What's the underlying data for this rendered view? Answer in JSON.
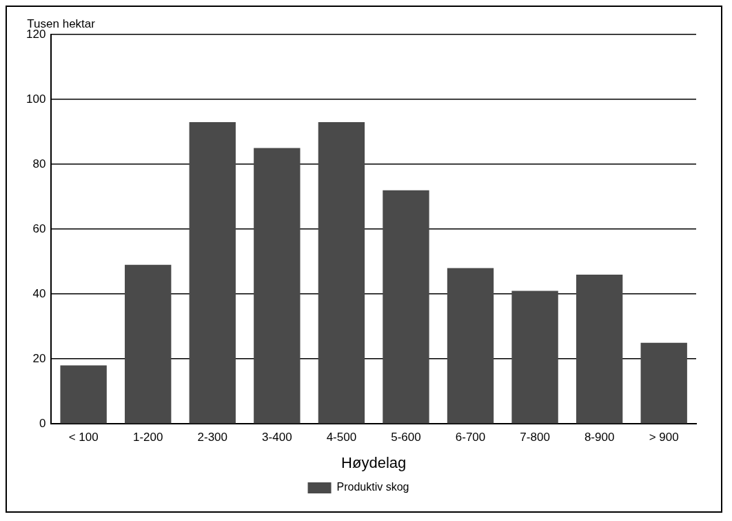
{
  "chart_data": {
    "type": "bar",
    "xlabel": "Høydelag",
    "ylabel": "Tusen hektar",
    "categories": [
      "< 100",
      "1-200",
      "2-300",
      "3-400",
      "4-500",
      "5-600",
      "6-700",
      "7-800",
      "8-900",
      "> 900"
    ],
    "series": [
      {
        "name": "Produktiv skog",
        "color": "#4a4a4a",
        "values": [
          18,
          49,
          93,
          85,
          93,
          72,
          48,
          41,
          46,
          25
        ]
      }
    ],
    "ylim": [
      0,
      120
    ],
    "yticks": [
      0,
      20,
      40,
      60,
      80,
      100,
      120
    ],
    "grid": "y",
    "legend": "bottom"
  }
}
